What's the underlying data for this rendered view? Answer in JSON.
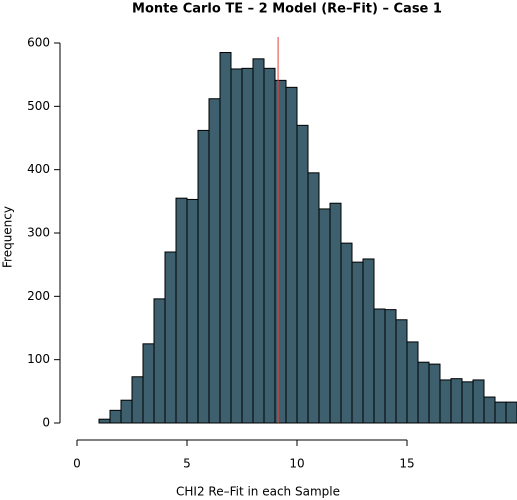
{
  "chart_data": {
    "type": "histogram",
    "title": "Monte Carlo TE – 2 Model (Re–Fit) – Case 1",
    "x_label": "CHI2 Re–Fit in each Sample",
    "y_label": "Frequency",
    "bins": [
      1,
      1.5,
      2,
      2.5,
      3,
      3.5,
      4,
      4.5,
      5,
      5.5,
      6,
      6.5,
      7,
      7.5,
      8,
      8.5,
      9,
      9.5,
      10,
      10.5,
      11,
      11.5,
      12,
      12.5,
      13,
      13.5,
      14,
      14.5,
      15,
      15.5,
      16,
      16.5,
      17,
      17.5,
      18,
      18.5,
      19,
      19.5,
      20
    ],
    "values": [
      6,
      20,
      36,
      73,
      125,
      196,
      270,
      355,
      353,
      462,
      512,
      585,
      559,
      560,
      575,
      560,
      541,
      530,
      470,
      395,
      338,
      347,
      284,
      254,
      259,
      180,
      179,
      163,
      128,
      96,
      93,
      68,
      70,
      65,
      68,
      41,
      33,
      33
    ],
    "color": "#3d5f6e",
    "vline": 9.14,
    "vline_color": "#e8413c",
    "xlim": [
      0,
      20
    ],
    "ylim": [
      0,
      600
    ],
    "xticks": [
      0,
      5,
      10,
      15
    ],
    "yticks": [
      0,
      100,
      200,
      300,
      400,
      500,
      600
    ]
  }
}
